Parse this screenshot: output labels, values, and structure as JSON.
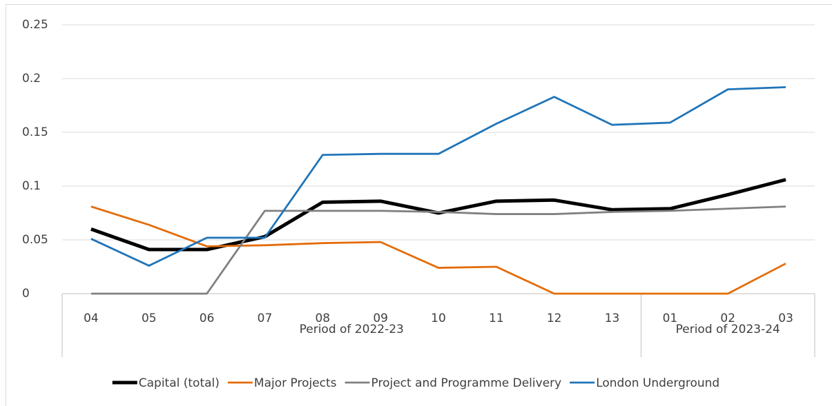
{
  "chart_data": {
    "type": "line",
    "category_groups": [
      {
        "name": "Period of 2022-23",
        "categories": [
          "04",
          "05",
          "06",
          "07",
          "08",
          "09",
          "10",
          "11",
          "12",
          "13"
        ]
      },
      {
        "name": "Period of 2023-24",
        "categories": [
          "01",
          "02",
          "03"
        ]
      }
    ],
    "series": [
      {
        "name": "Capital (total)",
        "color": "#000000",
        "values": [
          0.06,
          0.041,
          0.041,
          0.053,
          0.085,
          0.086,
          0.075,
          0.086,
          0.087,
          0.078,
          0.079,
          0.092,
          0.106
        ]
      },
      {
        "name": "Major Projects",
        "color": "#e36c0a",
        "values": [
          0.081,
          0.064,
          0.044,
          0.045,
          0.047,
          0.048,
          0.024,
          0.025,
          0,
          0,
          0,
          0,
          0.028
        ]
      },
      {
        "name": "Project and Programme Delivery",
        "color": "#808080",
        "values": [
          0,
          0,
          0,
          0.077,
          0.077,
          0.077,
          0.076,
          0.074,
          0.074,
          0.076,
          0.077,
          0.079,
          0.081
        ]
      },
      {
        "name": "London Underground",
        "color": "#1f74b8",
        "values": [
          0.051,
          0.026,
          0.052,
          0.052,
          0.129,
          0.13,
          0.13,
          0.158,
          0.183,
          0.157,
          0.159,
          0.19,
          0.192
        ]
      }
    ],
    "ylim": [
      0,
      0.25
    ],
    "yticks": [
      0,
      0.05,
      0.1,
      0.15,
      0.2,
      0.25
    ],
    "grid": true,
    "legend": "bottom"
  }
}
